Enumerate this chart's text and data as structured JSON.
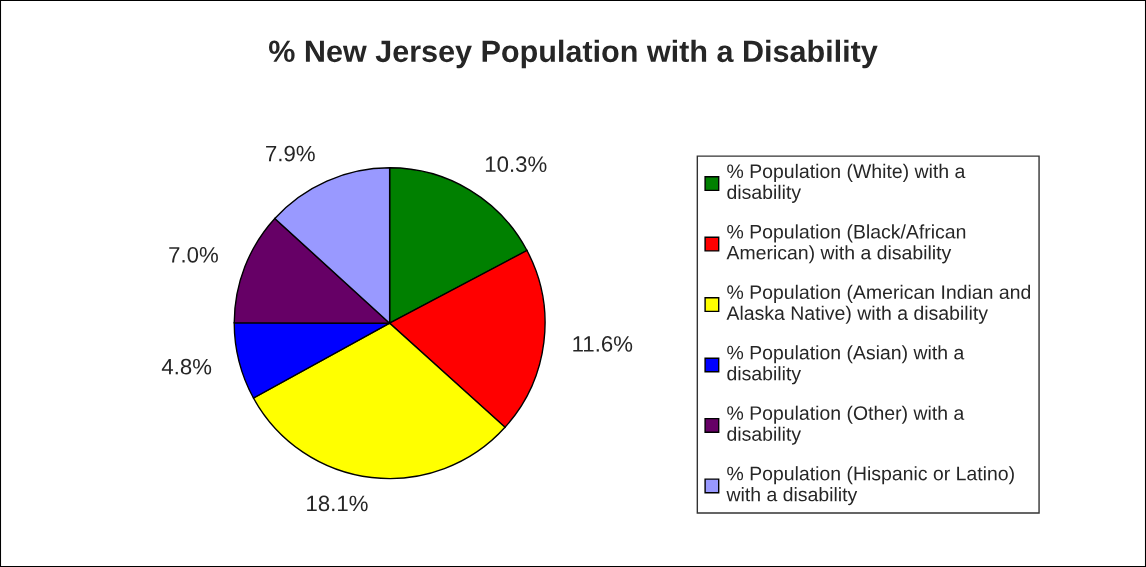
{
  "chart_data": {
    "type": "pie",
    "title": "% New Jersey Population with a Disability",
    "categories": [
      "% Population (White) with a disability",
      "% Population (Black/African American) with a disability",
      "% Population (American Indian and Alaska Native) with a disability",
      "% Population (Asian) with a disability",
      "% Population (Other) with a disability",
      "% Population (Hispanic or Latino) with a disability"
    ],
    "values": [
      10.3,
      11.6,
      18.1,
      4.8,
      7.0,
      7.9
    ],
    "value_labels": [
      "10.3%",
      "11.6%",
      "18.1%",
      "4.8%",
      "7.0%",
      "7.9%"
    ],
    "colors": [
      "#008000",
      "#ff0000",
      "#ffff00",
      "#0000ff",
      "#660066",
      "#9999ff"
    ],
    "legend": "right"
  }
}
